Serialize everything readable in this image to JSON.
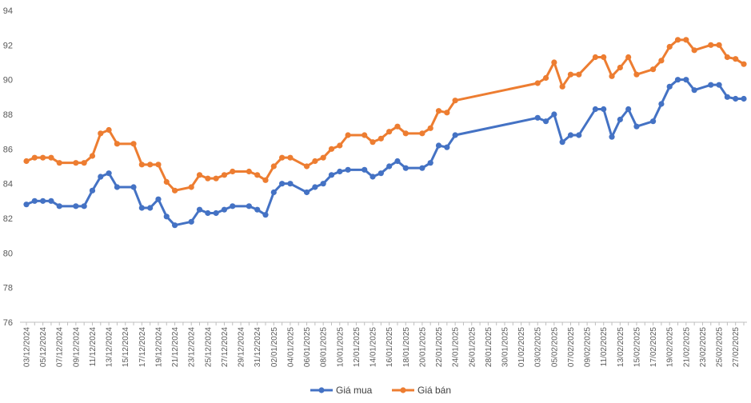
{
  "chart_data": {
    "type": "line",
    "ylim": [
      76,
      94
    ],
    "yticks": [
      76,
      78,
      80,
      82,
      84,
      86,
      88,
      90,
      92,
      94
    ],
    "grid": false,
    "legend_position": "bottom-center",
    "x": [
      "03/12/2024",
      "04/12/2024",
      "05/12/2024",
      "06/12/2024",
      "07/12/2024",
      "08/12/2024",
      "09/12/2024",
      "10/12/2024",
      "11/12/2024",
      "12/12/2024",
      "13/12/2024",
      "14/12/2024",
      "15/12/2024",
      "16/12/2024",
      "17/12/2024",
      "18/12/2024",
      "19/12/2024",
      "20/12/2024",
      "21/12/2024",
      "22/12/2024",
      "23/12/2024",
      "24/12/2024",
      "25/12/2024",
      "26/12/2024",
      "27/12/2024",
      "28/12/2024",
      "29/12/2024",
      "30/12/2024",
      "31/12/2024",
      "01/01/2025",
      "02/01/2025",
      "03/01/2025",
      "04/01/2025",
      "05/01/2025",
      "06/01/2025",
      "07/01/2025",
      "08/01/2025",
      "09/01/2025",
      "10/01/2025",
      "11/01/2025",
      "12/01/2025",
      "13/01/2025",
      "14/01/2025",
      "15/01/2025",
      "16/01/2025",
      "17/01/2025",
      "18/01/2025",
      "19/01/2025",
      "20/01/2025",
      "21/01/2025",
      "22/01/2025",
      "23/01/2025",
      "24/01/2025",
      "25/01/2025",
      "26/01/2025",
      "27/01/2025",
      "28/01/2025",
      "29/01/2025",
      "30/01/2025",
      "31/01/2025",
      "01/02/2025",
      "02/02/2025",
      "03/02/2025",
      "04/02/2025",
      "05/02/2025",
      "06/02/2025",
      "07/02/2025",
      "08/02/2025",
      "09/02/2025",
      "10/02/2025",
      "11/02/2025",
      "12/02/2025",
      "13/02/2025",
      "14/02/2025",
      "15/02/2025",
      "16/02/2025",
      "17/02/2025",
      "18/02/2025",
      "19/02/2025",
      "20/02/2025",
      "21/02/2025",
      "22/02/2025",
      "23/02/2025",
      "24/02/2025",
      "25/02/2025",
      "26/02/2025",
      "27/02/2025",
      "28/02/2025"
    ],
    "xtick_labels": [
      "03/12/2024",
      "05/12/2024",
      "07/12/2024",
      "09/12/2024",
      "11/12/2024",
      "13/12/2024",
      "15/12/2024",
      "17/12/2024",
      "19/12/2024",
      "21/12/2024",
      "23/12/2024",
      "25/12/2024",
      "27/12/2024",
      "29/12/2024",
      "31/12/2024",
      "02/01/2025",
      "04/01/2025",
      "06/01/2025",
      "08/01/2025",
      "10/01/2025",
      "12/01/2025",
      "14/01/2025",
      "16/01/2025",
      "18/01/2025",
      "20/01/2025",
      "22/01/2025",
      "24/01/2025",
      "26/01/2025",
      "28/01/2025",
      "30/01/2025",
      "01/02/2025",
      "03/02/2025",
      "05/02/2025",
      "07/02/2025",
      "09/02/2025",
      "11/02/2025",
      "13/02/2025",
      "15/02/2025",
      "17/02/2025",
      "19/02/2025",
      "21/02/2025",
      "23/02/2025",
      "25/02/2025",
      "27/02/2025"
    ],
    "series": [
      {
        "name": "Giá mua",
        "color": "#4472C4",
        "points": [
          [
            "03/12/2024",
            82.8
          ],
          [
            "04/12/2024",
            83.0
          ],
          [
            "05/12/2024",
            83.0
          ],
          [
            "06/12/2024",
            83.0
          ],
          [
            "07/12/2024",
            82.7
          ],
          [
            "09/12/2024",
            82.7
          ],
          [
            "10/12/2024",
            82.7
          ],
          [
            "11/12/2024",
            83.6
          ],
          [
            "12/12/2024",
            84.4
          ],
          [
            "13/12/2024",
            84.6
          ],
          [
            "14/12/2024",
            83.8
          ],
          [
            "16/12/2024",
            83.8
          ],
          [
            "17/12/2024",
            82.6
          ],
          [
            "18/12/2024",
            82.6
          ],
          [
            "19/12/2024",
            83.1
          ],
          [
            "20/12/2024",
            82.1
          ],
          [
            "21/12/2024",
            81.6
          ],
          [
            "23/12/2024",
            81.8
          ],
          [
            "24/12/2024",
            82.5
          ],
          [
            "25/12/2024",
            82.3
          ],
          [
            "26/12/2024",
            82.3
          ],
          [
            "27/12/2024",
            82.5
          ],
          [
            "28/12/2024",
            82.7
          ],
          [
            "30/12/2024",
            82.7
          ],
          [
            "31/12/2024",
            82.5
          ],
          [
            "01/01/2025",
            82.2
          ],
          [
            "02/01/2025",
            83.5
          ],
          [
            "03/01/2025",
            84.0
          ],
          [
            "04/01/2025",
            84.0
          ],
          [
            "06/01/2025",
            83.5
          ],
          [
            "07/01/2025",
            83.8
          ],
          [
            "08/01/2025",
            84.0
          ],
          [
            "09/01/2025",
            84.5
          ],
          [
            "10/01/2025",
            84.7
          ],
          [
            "11/01/2025",
            84.8
          ],
          [
            "13/01/2025",
            84.8
          ],
          [
            "14/01/2025",
            84.4
          ],
          [
            "15/01/2025",
            84.6
          ],
          [
            "16/01/2025",
            85.0
          ],
          [
            "17/01/2025",
            85.3
          ],
          [
            "18/01/2025",
            84.9
          ],
          [
            "20/01/2025",
            84.9
          ],
          [
            "21/01/2025",
            85.2
          ],
          [
            "22/01/2025",
            86.2
          ],
          [
            "23/01/2025",
            86.1
          ],
          [
            "24/01/2025",
            86.8
          ],
          [
            "03/02/2025",
            87.8
          ],
          [
            "04/02/2025",
            87.6
          ],
          [
            "05/02/2025",
            88.0
          ],
          [
            "06/02/2025",
            86.4
          ],
          [
            "07/02/2025",
            86.8
          ],
          [
            "08/02/2025",
            86.8
          ],
          [
            "10/02/2025",
            88.3
          ],
          [
            "11/02/2025",
            88.3
          ],
          [
            "12/02/2025",
            86.7
          ],
          [
            "13/02/2025",
            87.7
          ],
          [
            "14/02/2025",
            88.3
          ],
          [
            "15/02/2025",
            87.3
          ],
          [
            "17/02/2025",
            87.6
          ],
          [
            "18/02/2025",
            88.6
          ],
          [
            "19/02/2025",
            89.6
          ],
          [
            "20/02/2025",
            90.0
          ],
          [
            "21/02/2025",
            90.0
          ],
          [
            "22/02/2025",
            89.4
          ],
          [
            "24/02/2025",
            89.7
          ],
          [
            "25/02/2025",
            89.7
          ],
          [
            "26/02/2025",
            89.0
          ],
          [
            "27/02/2025",
            88.9
          ],
          [
            "28/02/2025",
            88.9
          ]
        ]
      },
      {
        "name": "Giá bán",
        "color": "#ED7D31",
        "points": [
          [
            "03/12/2024",
            85.3
          ],
          [
            "04/12/2024",
            85.5
          ],
          [
            "05/12/2024",
            85.5
          ],
          [
            "06/12/2024",
            85.5
          ],
          [
            "07/12/2024",
            85.2
          ],
          [
            "09/12/2024",
            85.2
          ],
          [
            "10/12/2024",
            85.2
          ],
          [
            "11/12/2024",
            85.6
          ],
          [
            "12/12/2024",
            86.9
          ],
          [
            "13/12/2024",
            87.1
          ],
          [
            "14/12/2024",
            86.3
          ],
          [
            "16/12/2024",
            86.3
          ],
          [
            "17/12/2024",
            85.1
          ],
          [
            "18/12/2024",
            85.1
          ],
          [
            "19/12/2024",
            85.1
          ],
          [
            "20/12/2024",
            84.1
          ],
          [
            "21/12/2024",
            83.6
          ],
          [
            "23/12/2024",
            83.8
          ],
          [
            "24/12/2024",
            84.5
          ],
          [
            "25/12/2024",
            84.3
          ],
          [
            "26/12/2024",
            84.3
          ],
          [
            "27/12/2024",
            84.5
          ],
          [
            "28/12/2024",
            84.7
          ],
          [
            "30/12/2024",
            84.7
          ],
          [
            "31/12/2024",
            84.5
          ],
          [
            "01/01/2025",
            84.2
          ],
          [
            "02/01/2025",
            85.0
          ],
          [
            "03/01/2025",
            85.5
          ],
          [
            "04/01/2025",
            85.5
          ],
          [
            "06/01/2025",
            85.0
          ],
          [
            "07/01/2025",
            85.3
          ],
          [
            "08/01/2025",
            85.5
          ],
          [
            "09/01/2025",
            86.0
          ],
          [
            "10/01/2025",
            86.2
          ],
          [
            "11/01/2025",
            86.8
          ],
          [
            "13/01/2025",
            86.8
          ],
          [
            "14/01/2025",
            86.4
          ],
          [
            "15/01/2025",
            86.6
          ],
          [
            "16/01/2025",
            87.0
          ],
          [
            "17/01/2025",
            87.3
          ],
          [
            "18/01/2025",
            86.9
          ],
          [
            "20/01/2025",
            86.9
          ],
          [
            "21/01/2025",
            87.2
          ],
          [
            "22/01/2025",
            88.2
          ],
          [
            "23/01/2025",
            88.1
          ],
          [
            "24/01/2025",
            88.8
          ],
          [
            "03/02/2025",
            89.8
          ],
          [
            "04/02/2025",
            90.1
          ],
          [
            "05/02/2025",
            91.0
          ],
          [
            "06/02/2025",
            89.6
          ],
          [
            "07/02/2025",
            90.3
          ],
          [
            "08/02/2025",
            90.3
          ],
          [
            "10/02/2025",
            91.3
          ],
          [
            "11/02/2025",
            91.3
          ],
          [
            "12/02/2025",
            90.2
          ],
          [
            "13/02/2025",
            90.7
          ],
          [
            "14/02/2025",
            91.3
          ],
          [
            "15/02/2025",
            90.3
          ],
          [
            "17/02/2025",
            90.6
          ],
          [
            "18/02/2025",
            91.1
          ],
          [
            "19/02/2025",
            91.9
          ],
          [
            "20/02/2025",
            92.3
          ],
          [
            "21/02/2025",
            92.3
          ],
          [
            "22/02/2025",
            91.7
          ],
          [
            "24/02/2025",
            92.0
          ],
          [
            "25/02/2025",
            92.0
          ],
          [
            "26/02/2025",
            91.3
          ],
          [
            "27/02/2025",
            91.2
          ],
          [
            "28/02/2025",
            90.9
          ]
        ]
      }
    ]
  }
}
